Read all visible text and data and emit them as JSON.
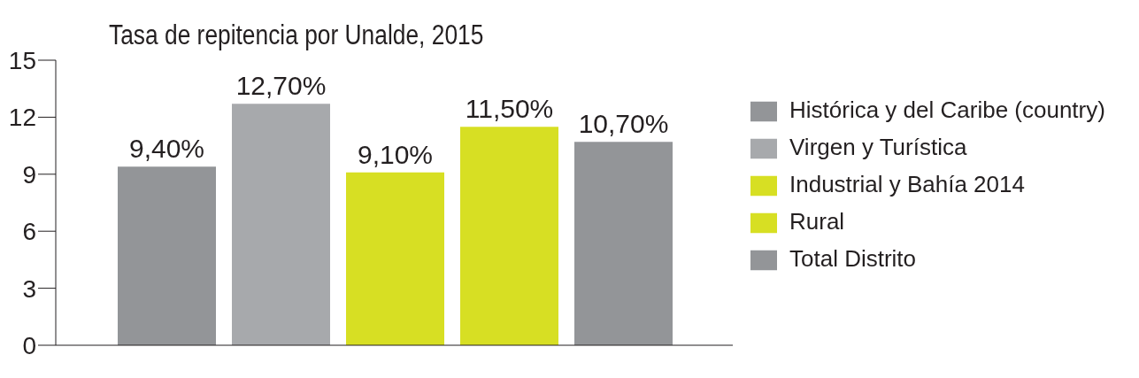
{
  "chart_data": {
    "type": "bar",
    "title": "Tasa de repitencia por Unalde, 2015",
    "categories": [
      null
    ],
    "series": [
      {
        "name": "Histórica y del Caribe (country)",
        "color": "#939598",
        "values": [
          9.4
        ],
        "value_labels": [
          "9,40%"
        ]
      },
      {
        "name": "Virgen y Turística",
        "color": "#a7a9ac",
        "values": [
          12.7
        ],
        "value_labels": [
          "12,70%"
        ]
      },
      {
        "name": "Industrial y Bahía 2014",
        "color": "#d7df23",
        "values": [
          9.1
        ],
        "value_labels": [
          "9,10%"
        ]
      },
      {
        "name": "Rural",
        "color": "#d7df23",
        "values": [
          11.5
        ],
        "value_labels": [
          "11,50%"
        ]
      },
      {
        "name": "Total Distrito",
        "color": "#939598",
        "values": [
          10.7
        ],
        "value_labels": [
          "10,70%"
        ]
      }
    ],
    "ylim": [
      0,
      15
    ],
    "yticks": [
      0,
      3,
      6,
      9,
      12,
      15
    ],
    "grid": false,
    "legend": "right"
  }
}
